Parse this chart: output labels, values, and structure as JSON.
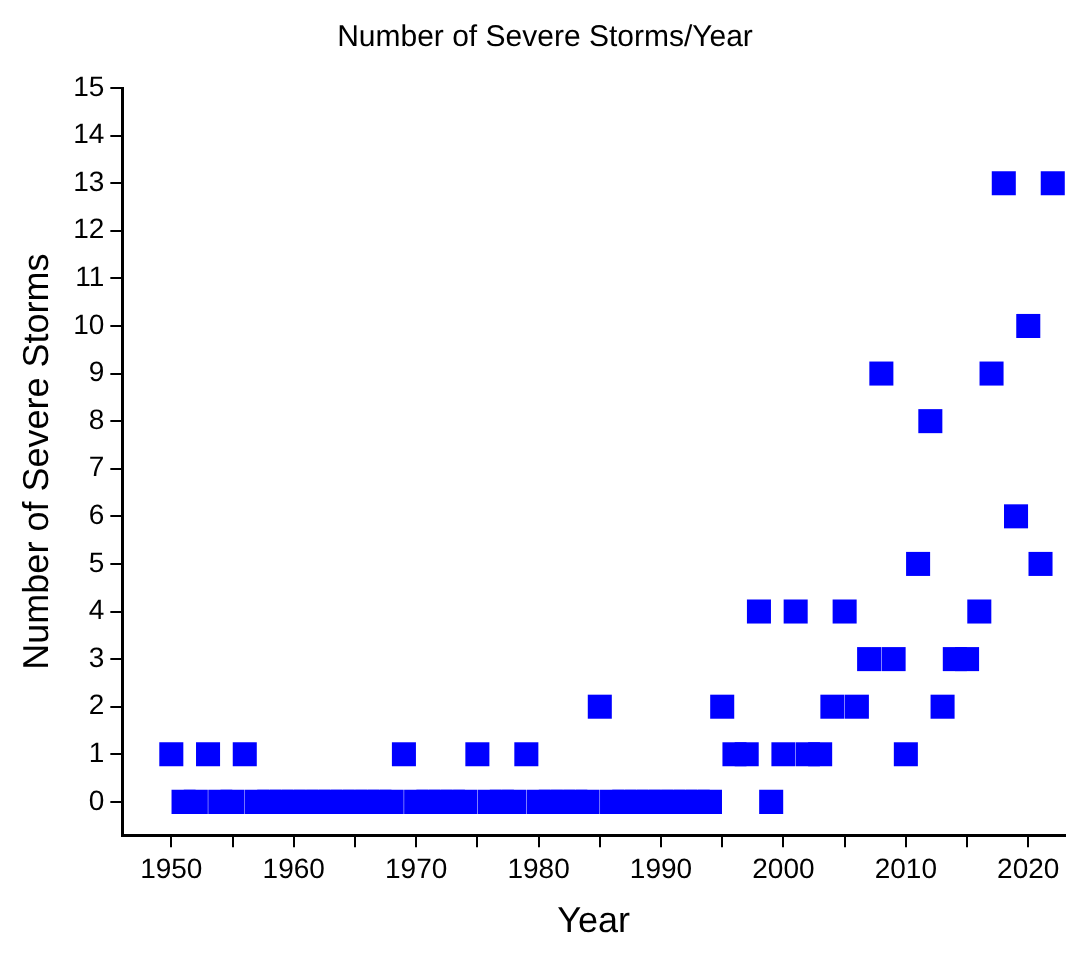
{
  "chart_data": {
    "type": "scatter",
    "title": "Number of Severe Storms/Year",
    "xlabel": "Year",
    "ylabel": "Number of Severe Storms",
    "x": [
      1950,
      1951,
      1952,
      1953,
      1954,
      1955,
      1956,
      1957,
      1958,
      1959,
      1960,
      1961,
      1962,
      1963,
      1964,
      1965,
      1966,
      1967,
      1968,
      1969,
      1970,
      1971,
      1972,
      1973,
      1974,
      1975,
      1976,
      1977,
      1978,
      1979,
      1980,
      1981,
      1982,
      1983,
      1984,
      1985,
      1986,
      1987,
      1988,
      1989,
      1990,
      1991,
      1992,
      1993,
      1994,
      1995,
      1996,
      1997,
      1998,
      1999,
      2000,
      2001,
      2002,
      2003,
      2004,
      2005,
      2006,
      2007,
      2008,
      2009,
      2010,
      2011,
      2012,
      2013,
      2014,
      2015,
      2016,
      2017,
      2018,
      2019,
      2020,
      2021,
      2022
    ],
    "values": [
      1,
      0,
      0,
      1,
      0,
      0,
      1,
      0,
      0,
      0,
      0,
      0,
      0,
      0,
      0,
      0,
      0,
      0,
      0,
      1,
      0,
      0,
      0,
      0,
      0,
      1,
      0,
      0,
      0,
      1,
      0,
      0,
      0,
      0,
      0,
      2,
      0,
      0,
      0,
      0,
      0,
      0,
      0,
      0,
      0,
      2,
      1,
      1,
      4,
      0,
      1,
      4,
      1,
      1,
      2,
      4,
      2,
      3,
      9,
      3,
      1,
      5,
      8,
      2,
      3,
      3,
      4,
      9,
      13,
      6,
      10,
      5,
      13
    ],
    "color": "#0000ff",
    "marker": "square",
    "grid": false,
    "legend": false,
    "xlim": [
      1946,
      2023
    ],
    "xticks": [
      1950,
      {
        "value": 1955,
        "label": null
      },
      1960,
      {
        "value": 1965,
        "label": null
      },
      1970,
      {
        "value": 1975,
        "label": null
      },
      1980,
      {
        "value": 1985,
        "label": null
      },
      1990,
      {
        "value": 1995,
        "label": null
      },
      2000,
      {
        "value": 2005,
        "label": null
      },
      2010,
      {
        "value": 2015,
        "label": null
      },
      2020
    ],
    "ylim": [
      -0.7,
      15
    ],
    "yticks": [
      0,
      1,
      2,
      3,
      4,
      5,
      6,
      7,
      8,
      9,
      10,
      11,
      12,
      13,
      14,
      15
    ]
  }
}
